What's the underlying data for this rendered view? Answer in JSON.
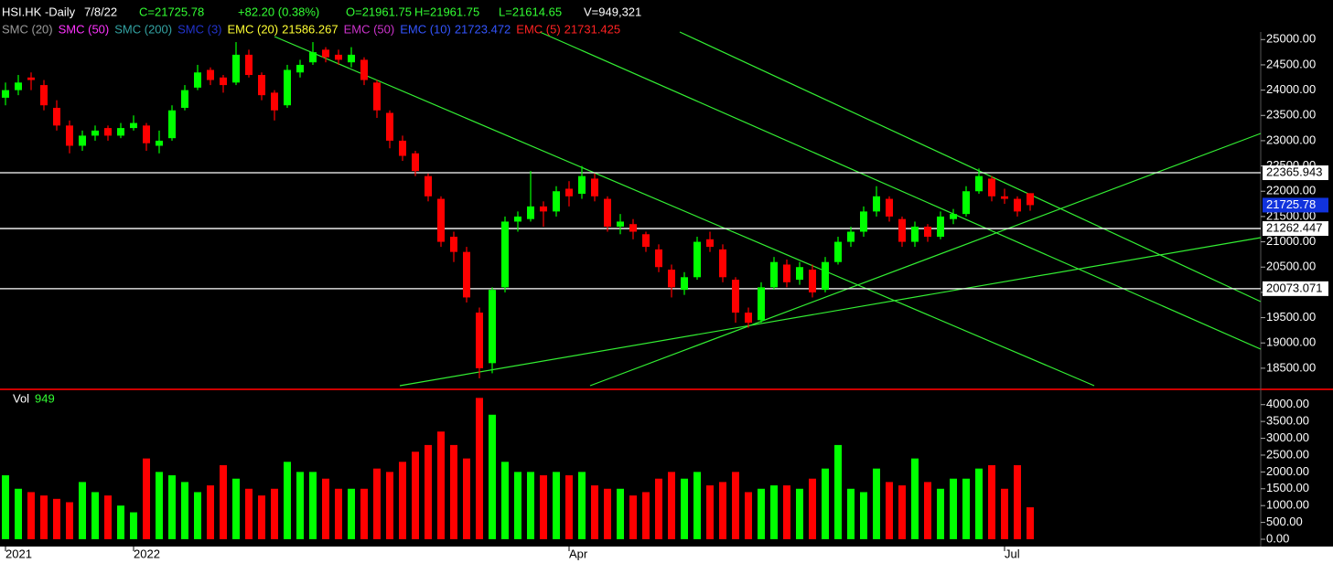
{
  "chart_data": {
    "type": "candlestick",
    "header": {
      "symbol": "HSI.HK -Daily",
      "date": "7/8/22",
      "close": "C=21725.78",
      "change": "+82.20 (0.38%)",
      "open": "O=21961.75",
      "high": "H=21961.75",
      "low": "L=21614.65",
      "volume": "V=949,321"
    },
    "indicators": [
      {
        "name": "SMC (20)",
        "color": "#9a9a9a"
      },
      {
        "name": "SMC (50)",
        "color": "#ff33ff"
      },
      {
        "name": "SMC (200)",
        "color": "#33a3a3"
      },
      {
        "name": "SMC (3)",
        "color": "#2233cc"
      },
      {
        "name": "EMC (20)",
        "color": "#ffff33",
        "value": 21586.267
      },
      {
        "name": "EMC (50)",
        "color": "#cc33cc"
      },
      {
        "name": "EMC (10)",
        "color": "#3355ff",
        "value": 21723.472
      },
      {
        "name": "EMC (5)",
        "color": "#ff2222",
        "value": 21731.425
      }
    ],
    "categories": [
      "2021",
      null,
      null,
      null,
      null,
      null,
      null,
      null,
      null,
      null,
      "2022",
      null,
      null,
      null,
      null,
      null,
      null,
      null,
      null,
      null,
      null,
      null,
      null,
      null,
      null,
      null,
      null,
      null,
      null,
      null,
      null,
      null,
      null,
      null,
      null,
      null,
      null,
      null,
      null,
      null,
      null,
      null,
      null,
      null,
      "Apr",
      null,
      null,
      null,
      null,
      null,
      null,
      null,
      null,
      null,
      null,
      null,
      null,
      null,
      null,
      null,
      null,
      null,
      null,
      null,
      null,
      null,
      null,
      null,
      null,
      null,
      null,
      null,
      null,
      null,
      null,
      null,
      null,
      null,
      "Jul",
      null,
      null
    ],
    "candles": [
      [
        23850,
        24150,
        23700,
        24000
      ],
      [
        24000,
        24300,
        23900,
        24150
      ],
      [
        24250,
        24350,
        24000,
        24200
      ],
      [
        24100,
        24200,
        23600,
        23700
      ],
      [
        23650,
        23800,
        23200,
        23300
      ],
      [
        23300,
        23400,
        22750,
        22900
      ],
      [
        22900,
        23200,
        22800,
        23100
      ],
      [
        23100,
        23300,
        23000,
        23200
      ],
      [
        23250,
        23300,
        23000,
        23100
      ],
      [
        23100,
        23350,
        23050,
        23250
      ],
      [
        23250,
        23500,
        23200,
        23350
      ],
      [
        23300,
        23350,
        22800,
        22950
      ],
      [
        22900,
        23200,
        22750,
        23000
      ],
      [
        23050,
        23700,
        23000,
        23600
      ],
      [
        23650,
        24100,
        23600,
        24000
      ],
      [
        24050,
        24500,
        24000,
        24350
      ],
      [
        24400,
        24450,
        24100,
        24200
      ],
      [
        24250,
        24300,
        23950,
        24100
      ],
      [
        24150,
        24950,
        24100,
        24700
      ],
      [
        24700,
        24800,
        24250,
        24300
      ],
      [
        24300,
        24350,
        23800,
        23900
      ],
      [
        23950,
        24000,
        23400,
        23600
      ],
      [
        23700,
        24500,
        23650,
        24400
      ],
      [
        24350,
        24600,
        24250,
        24500
      ],
      [
        24550,
        24950,
        24500,
        24750
      ],
      [
        24800,
        24850,
        24550,
        24650
      ],
      [
        24700,
        24800,
        24500,
        24600
      ],
      [
        24550,
        24850,
        24450,
        24700
      ],
      [
        24600,
        24650,
        24100,
        24200
      ],
      [
        24150,
        24200,
        23450,
        23600
      ],
      [
        23550,
        23600,
        22850,
        23000
      ],
      [
        23000,
        23100,
        22600,
        22700
      ],
      [
        22750,
        22800,
        22300,
        22400
      ],
      [
        22300,
        22350,
        21800,
        21900
      ],
      [
        21850,
        21900,
        20900,
        21000
      ],
      [
        21100,
        21200,
        20600,
        20800
      ],
      [
        20800,
        20900,
        19800,
        19900
      ],
      [
        19600,
        19700,
        18300,
        18500
      ],
      [
        18600,
        20100,
        18400,
        20050
      ],
      [
        20100,
        21500,
        20000,
        21400
      ],
      [
        21400,
        21600,
        21200,
        21500
      ],
      [
        21450,
        22400,
        21400,
        21700
      ],
      [
        21700,
        21800,
        21300,
        21600
      ],
      [
        21600,
        22100,
        21500,
        22000
      ],
      [
        22050,
        22200,
        21700,
        21900
      ],
      [
        21950,
        22500,
        21850,
        22300
      ],
      [
        22250,
        22350,
        21800,
        21900
      ],
      [
        21850,
        21900,
        21200,
        21300
      ],
      [
        21300,
        21550,
        21150,
        21400
      ],
      [
        21350,
        21450,
        21050,
        21200
      ],
      [
        21150,
        21200,
        20800,
        20900
      ],
      [
        20850,
        20950,
        20400,
        20500
      ],
      [
        20450,
        20550,
        19900,
        20100
      ],
      [
        20050,
        20400,
        19950,
        20300
      ],
      [
        20300,
        21100,
        20250,
        21000
      ],
      [
        21050,
        21200,
        20800,
        20900
      ],
      [
        20850,
        20950,
        20200,
        20300
      ],
      [
        20250,
        20300,
        19400,
        19600
      ],
      [
        19600,
        19700,
        19300,
        19400
      ],
      [
        19450,
        20200,
        19400,
        20100
      ],
      [
        20100,
        20700,
        20050,
        20600
      ],
      [
        20550,
        20650,
        20100,
        20200
      ],
      [
        20250,
        20600,
        20150,
        20500
      ],
      [
        20450,
        20550,
        19900,
        20000
      ],
      [
        20050,
        20700,
        20000,
        20600
      ],
      [
        20600,
        21100,
        20550,
        21000
      ],
      [
        21000,
        21300,
        20900,
        21200
      ],
      [
        21200,
        21700,
        21100,
        21600
      ],
      [
        21600,
        22100,
        21500,
        21900
      ],
      [
        21850,
        21900,
        21400,
        21500
      ],
      [
        21450,
        21500,
        20900,
        21000
      ],
      [
        21000,
        21400,
        20900,
        21300
      ],
      [
        21300,
        21350,
        21000,
        21100
      ],
      [
        21100,
        21600,
        21050,
        21500
      ],
      [
        21450,
        21650,
        21350,
        21550
      ],
      [
        21550,
        22100,
        21500,
        22000
      ],
      [
        22000,
        22450,
        21950,
        22300
      ],
      [
        22250,
        22300,
        21800,
        21900
      ],
      [
        21900,
        22050,
        21750,
        21850
      ],
      [
        21850,
        21900,
        21500,
        21600
      ],
      [
        21961.75,
        21961.75,
        21614.65,
        21725.78
      ]
    ],
    "volume_label": "Vol",
    "volume_value": 949,
    "volumes": [
      1900,
      1500,
      1400,
      1300,
      1200,
      1100,
      1700,
      1400,
      1300,
      1000,
      800,
      2400,
      2000,
      1900,
      1700,
      1400,
      1600,
      2200,
      1800,
      1500,
      1300,
      1500,
      2300,
      2000,
      2000,
      1800,
      1500,
      1500,
      1500,
      2100,
      2000,
      2300,
      2600,
      2800,
      3200,
      2800,
      2400,
      4200,
      3700,
      2300,
      2000,
      2000,
      1900,
      2000,
      1900,
      2000,
      1600,
      1500,
      1500,
      1300,
      1400,
      1800,
      2000,
      1800,
      2000,
      1600,
      1700,
      2000,
      1400,
      1500,
      1600,
      1600,
      1500,
      1800,
      2100,
      2800,
      1500,
      1400,
      2100,
      1700,
      1600,
      2400,
      1700,
      1500,
      1800,
      1800,
      2100,
      2200,
      1500,
      2200,
      949
    ],
    "up_color": "#00ff00",
    "down_color": "#ff0000",
    "levels": [
      22365.943,
      21262.447,
      20073.071
    ],
    "ylim": [
      18100,
      25150
    ],
    "yticks": [
      {
        "value": 18500,
        "label": "18500.00"
      },
      {
        "value": 19000,
        "label": "19000.00"
      },
      {
        "value": 19500,
        "label": "19500.00"
      },
      {
        "value": 20000,
        "label": "20000.00"
      },
      {
        "value": 20500,
        "label": "20500.00"
      },
      {
        "value": 21000,
        "label": "21000.00"
      },
      {
        "value": 21500,
        "label": "21500.00"
      },
      {
        "value": 22000,
        "label": "22000.00"
      },
      {
        "value": 22500,
        "label": "22500.00"
      },
      {
        "value": 23000,
        "label": "23000.00"
      },
      {
        "value": 23500,
        "label": "23500.00"
      },
      {
        "value": 24000,
        "label": "24000.00"
      },
      {
        "value": 24500,
        "label": "24500.00"
      },
      {
        "value": 25000,
        "label": "25000.00"
      }
    ],
    "y2lim": [
      0,
      4400
    ],
    "y2ticks": [
      {
        "value": 0,
        "label": "0.00"
      },
      {
        "value": 500,
        "label": "500.00"
      },
      {
        "value": 1000,
        "label": "1000.00"
      },
      {
        "value": 1500,
        "label": "1500.00"
      },
      {
        "value": 2000,
        "label": "2000.00"
      },
      {
        "value": 2500,
        "label": "2500.00"
      },
      {
        "value": 3000,
        "label": "3000.00"
      },
      {
        "value": 3500,
        "label": "3500.00"
      },
      {
        "value": 4000,
        "label": "4000.00"
      }
    ]
  }
}
